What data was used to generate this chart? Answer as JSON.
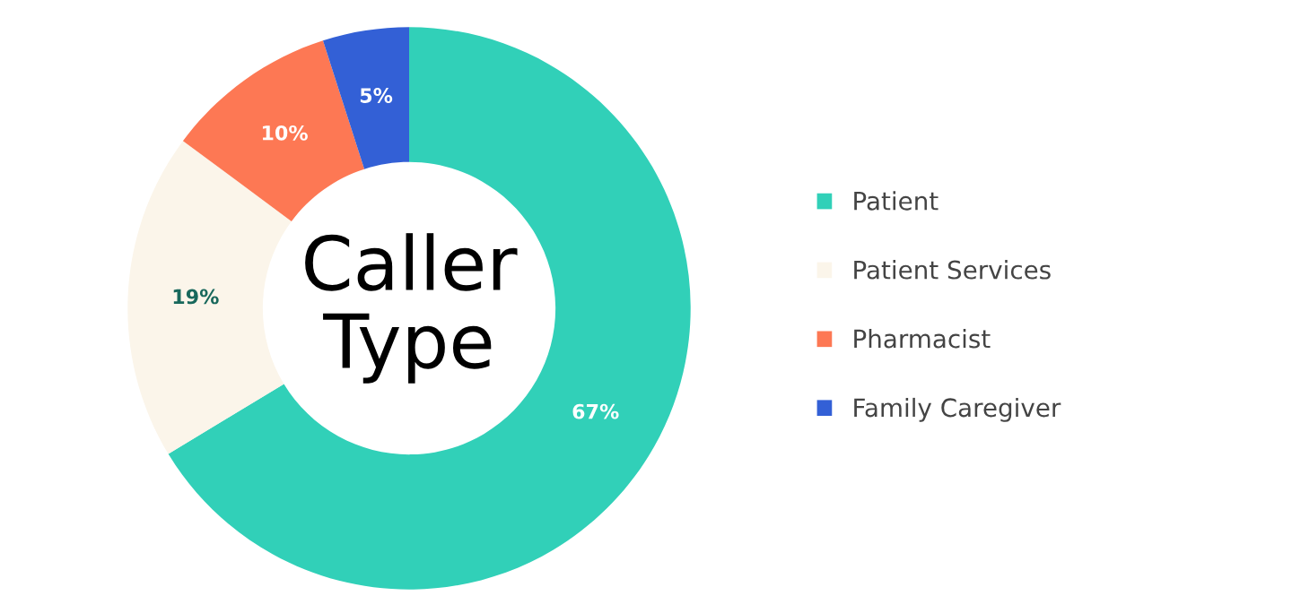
{
  "chart_data": {
    "type": "donut",
    "title": "Caller\nType",
    "categories": [
      "Patient",
      "Patient Services",
      "Pharmacist",
      "Family Caregiver"
    ],
    "values": [
      67,
      19,
      10,
      5
    ],
    "value_labels": [
      "67%",
      "19%",
      "10%",
      "5%"
    ],
    "colors": [
      "#31d0b8",
      "#fbf5ea",
      "#fd7854",
      "#3360d6"
    ],
    "legend": "right"
  }
}
